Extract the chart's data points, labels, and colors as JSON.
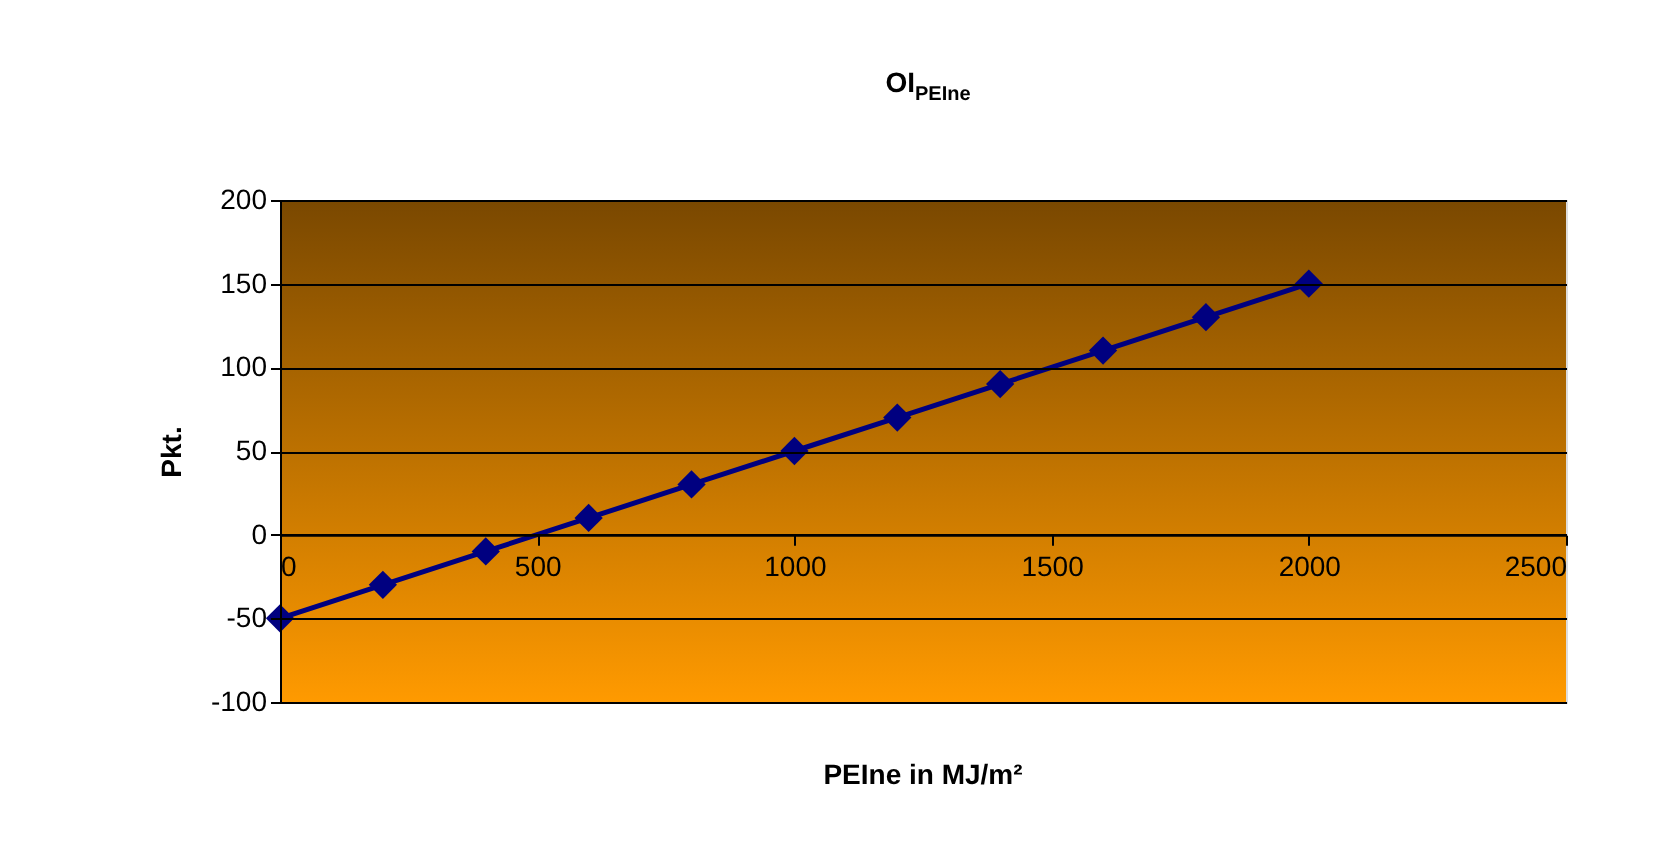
{
  "chart_data": {
    "type": "line",
    "title": "OI$_{PEIne}$",
    "xlabel": "PEIne in MJ/m²",
    "ylabel": "Pkt.",
    "x": [
      0,
      200,
      400,
      600,
      800,
      1000,
      1200,
      1400,
      1600,
      1800,
      2000
    ],
    "series": [
      {
        "color": "#000080",
        "values": [
          -50,
          -30,
          -10,
          10,
          30,
          50,
          70,
          90,
          110,
          130,
          150
        ]
      }
    ],
    "xlim": [
      0,
      2500
    ],
    "xticks": [
      0,
      500,
      1000,
      1500,
      2000,
      2500
    ],
    "ylim": [
      -100,
      200
    ],
    "yticks": [
      -100,
      -50,
      0,
      50,
      100,
      150,
      200
    ],
    "grid": "y",
    "marker": "diamond",
    "line_style": "solid"
  }
}
